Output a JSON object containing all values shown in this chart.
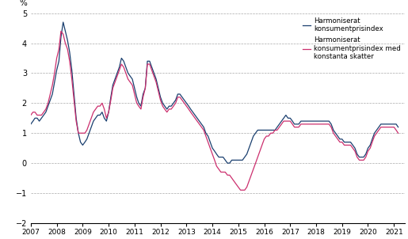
{
  "ylabel": "%",
  "ylim": [
    -2,
    5
  ],
  "yticks": [
    -2,
    -1,
    0,
    1,
    2,
    3,
    4,
    5
  ],
  "color_hicp": "#1a3f6f",
  "color_hicp_ct": "#cc2f6e",
  "legend1": "Harmoniserat\nkonsumentprisindex",
  "legend2": "Harmoniserat\nkonsumentprisindex med\nkonstanta skatter",
  "linewidth": 0.9,
  "figsize": [
    5.15,
    3.02
  ],
  "dpi": 100,
  "hicp": [
    1.3,
    1.4,
    1.5,
    1.5,
    1.4,
    1.5,
    1.6,
    1.7,
    1.9,
    2.1,
    2.3,
    2.7,
    3.1,
    3.4,
    4.2,
    4.7,
    4.4,
    4.1,
    3.7,
    3.1,
    2.3,
    1.5,
    1.0,
    0.7,
    0.6,
    0.7,
    0.8,
    1.0,
    1.2,
    1.4,
    1.5,
    1.6,
    1.6,
    1.7,
    1.5,
    1.4,
    1.7,
    2.2,
    2.6,
    2.8,
    3.0,
    3.2,
    3.5,
    3.4,
    3.2,
    3.0,
    2.9,
    2.8,
    2.5,
    2.2,
    2.0,
    1.9,
    2.3,
    2.5,
    3.4,
    3.4,
    3.2,
    3.0,
    2.8,
    2.5,
    2.2,
    2.0,
    1.9,
    1.8,
    1.9,
    1.9,
    2.0,
    2.1,
    2.3,
    2.3,
    2.2,
    2.1,
    2.0,
    1.9,
    1.8,
    1.7,
    1.6,
    1.5,
    1.4,
    1.3,
    1.2,
    1.0,
    0.9,
    0.7,
    0.5,
    0.4,
    0.3,
    0.2,
    0.2,
    0.2,
    0.1,
    0.0,
    0.0,
    0.1,
    0.1,
    0.1,
    0.1,
    0.1,
    0.1,
    0.2,
    0.3,
    0.5,
    0.7,
    0.9,
    1.0,
    1.1,
    1.1,
    1.1,
    1.1,
    1.1,
    1.1,
    1.1,
    1.1,
    1.1,
    1.2,
    1.3,
    1.4,
    1.5,
    1.6,
    1.5,
    1.5,
    1.4,
    1.3,
    1.3,
    1.3,
    1.4,
    1.4,
    1.4,
    1.4,
    1.4,
    1.4,
    1.4,
    1.4,
    1.4,
    1.4,
    1.4,
    1.4,
    1.4,
    1.4,
    1.3,
    1.1,
    1.0,
    0.9,
    0.8,
    0.8,
    0.7,
    0.7,
    0.7,
    0.7,
    0.6,
    0.5,
    0.3,
    0.2,
    0.2,
    0.2,
    0.3,
    0.5,
    0.6,
    0.8,
    1.0,
    1.1,
    1.2,
    1.3,
    1.3,
    1.3,
    1.3,
    1.3,
    1.3,
    1.3,
    1.3,
    1.2,
    1.1,
    1.0,
    1.0,
    1.0,
    1.2,
    1.4
  ],
  "hicp_ct": [
    1.6,
    1.7,
    1.7,
    1.6,
    1.6,
    1.6,
    1.7,
    1.8,
    2.0,
    2.3,
    2.6,
    3.0,
    3.5,
    3.8,
    4.4,
    4.3,
    4.0,
    3.8,
    3.4,
    2.8,
    2.1,
    1.4,
    1.0,
    1.0,
    1.0,
    1.0,
    1.1,
    1.3,
    1.5,
    1.7,
    1.8,
    1.9,
    1.9,
    2.0,
    1.8,
    1.5,
    1.7,
    2.1,
    2.5,
    2.7,
    2.9,
    3.1,
    3.3,
    3.2,
    3.0,
    2.8,
    2.7,
    2.6,
    2.3,
    2.0,
    1.9,
    1.8,
    2.2,
    2.5,
    3.3,
    3.3,
    3.1,
    2.9,
    2.7,
    2.4,
    2.1,
    1.9,
    1.8,
    1.7,
    1.8,
    1.8,
    1.9,
    2.0,
    2.2,
    2.2,
    2.1,
    2.0,
    1.9,
    1.8,
    1.7,
    1.6,
    1.5,
    1.4,
    1.3,
    1.2,
    1.1,
    0.9,
    0.7,
    0.5,
    0.3,
    0.1,
    -0.1,
    -0.2,
    -0.3,
    -0.3,
    -0.3,
    -0.4,
    -0.4,
    -0.5,
    -0.6,
    -0.7,
    -0.8,
    -0.9,
    -0.9,
    -0.9,
    -0.8,
    -0.6,
    -0.4,
    -0.2,
    0.0,
    0.2,
    0.4,
    0.6,
    0.8,
    0.9,
    0.9,
    1.0,
    1.0,
    1.1,
    1.1,
    1.2,
    1.3,
    1.4,
    1.4,
    1.4,
    1.4,
    1.3,
    1.2,
    1.2,
    1.2,
    1.3,
    1.3,
    1.3,
    1.3,
    1.3,
    1.3,
    1.3,
    1.3,
    1.3,
    1.3,
    1.3,
    1.3,
    1.3,
    1.3,
    1.2,
    1.0,
    0.9,
    0.8,
    0.7,
    0.7,
    0.6,
    0.6,
    0.6,
    0.6,
    0.5,
    0.4,
    0.2,
    0.1,
    0.1,
    0.1,
    0.2,
    0.4,
    0.5,
    0.7,
    0.9,
    1.0,
    1.1,
    1.2,
    1.2,
    1.2,
    1.2,
    1.2,
    1.2,
    1.2,
    1.1,
    1.0,
    0.9,
    0.8,
    0.7,
    0.7,
    0.8,
    1.0
  ]
}
